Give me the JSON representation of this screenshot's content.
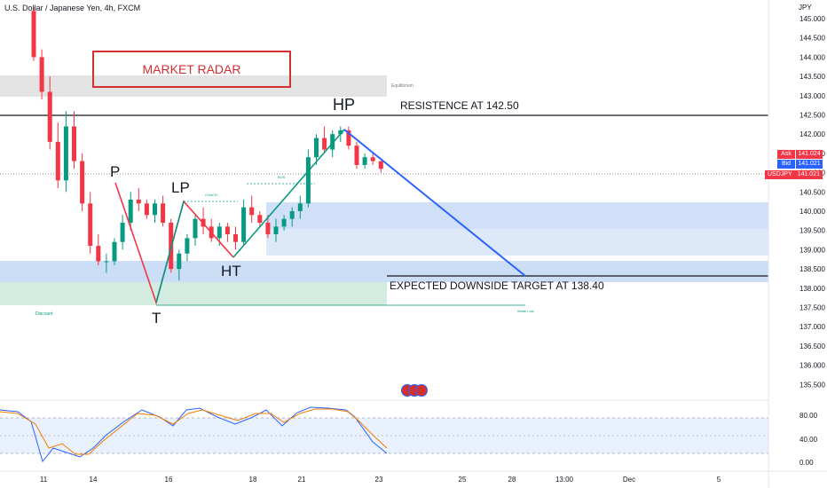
{
  "header": {
    "title": "U.S. Dollar / Japanese Yen, 4h, FXCM"
  },
  "currency": "JPY",
  "banner": {
    "text": "MARKET RADAR",
    "color": "#d32f2f"
  },
  "quotes": {
    "ask_label": "Ask",
    "ask_value": "141.024",
    "bid_label": "Bid",
    "bid_value": "141.021",
    "symbol_label": "USDJPY",
    "symbol_value": "141.021"
  },
  "annotations": {
    "p": "P",
    "t": "T",
    "lp": "LP",
    "ht": "HT",
    "hp": "HP",
    "resistance": "RESISTENCE AT 142.50",
    "target": "EXPECTED DOWNSIDE TARGET AT 138.40",
    "equilibrium": "Equilibrium",
    "discount": "Discount",
    "weak_low": "Weak Low",
    "choch": "CHoCH",
    "bos": "BOS"
  },
  "colors": {
    "up": "#089981",
    "down": "#f23645",
    "zone": "#bbd3f5",
    "discount": "#cfe9dc",
    "equilibrium": "#d9d9d9",
    "blue_line": "#2962ff",
    "red_line": "#f23645",
    "green_line": "#089981"
  },
  "chart_data": {
    "type": "candlestick",
    "y_axis": {
      "ticks": [
        "145.000",
        "144.500",
        "144.000",
        "143.500",
        "143.000",
        "142.500",
        "142.000",
        "141.500",
        "141.000",
        "140.500",
        "140.000",
        "139.500",
        "139.000",
        "138.500",
        "138.000",
        "137.500",
        "137.000",
        "136.500",
        "136.000",
        "135.500"
      ]
    },
    "x_axis": {
      "ticks": [
        "11",
        "14",
        "16",
        "18",
        "21",
        "23",
        "25",
        "28",
        "13:00",
        "Dec",
        "5"
      ]
    },
    "candles": [
      [
        145.2,
        145.3,
        143.9,
        144.0
      ],
      [
        144.0,
        144.2,
        142.9,
        143.1
      ],
      [
        143.1,
        143.5,
        141.6,
        141.8
      ],
      [
        141.8,
        142.3,
        140.6,
        140.8
      ],
      [
        140.8,
        142.6,
        140.5,
        142.2
      ],
      [
        142.2,
        142.6,
        141.1,
        141.3
      ],
      [
        141.3,
        141.5,
        140.0,
        140.2
      ],
      [
        140.2,
        140.5,
        138.9,
        139.1
      ],
      [
        139.1,
        139.4,
        138.6,
        138.7
      ],
      [
        138.7,
        138.9,
        138.4,
        138.7
      ],
      [
        138.7,
        139.3,
        138.6,
        139.2
      ],
      [
        139.2,
        139.9,
        139.0,
        139.7
      ],
      [
        139.7,
        140.5,
        139.5,
        140.3
      ],
      [
        140.3,
        140.6,
        140.0,
        140.2
      ],
      [
        140.2,
        140.3,
        139.8,
        139.9
      ],
      [
        139.9,
        140.3,
        139.7,
        140.2
      ],
      [
        140.2,
        140.4,
        139.6,
        139.7
      ],
      [
        139.7,
        139.8,
        138.4,
        138.5
      ],
      [
        138.5,
        139.0,
        138.2,
        138.9
      ],
      [
        138.9,
        139.4,
        138.7,
        139.3
      ],
      [
        139.3,
        139.9,
        139.1,
        139.8
      ],
      [
        139.8,
        140.1,
        139.4,
        139.6
      ],
      [
        139.6,
        139.8,
        139.2,
        139.3
      ],
      [
        139.3,
        139.7,
        139.1,
        139.6
      ],
      [
        139.6,
        139.7,
        139.2,
        139.4
      ],
      [
        139.4,
        139.6,
        139.0,
        139.2
      ],
      [
        139.2,
        140.3,
        139.1,
        140.1
      ],
      [
        140.1,
        140.4,
        139.7,
        139.9
      ],
      [
        139.9,
        140.0,
        139.6,
        139.7
      ],
      [
        139.7,
        139.9,
        139.3,
        139.4
      ],
      [
        139.4,
        139.8,
        139.2,
        139.6
      ],
      [
        139.6,
        139.9,
        139.5,
        139.8
      ],
      [
        139.8,
        140.1,
        139.6,
        140.0
      ],
      [
        140.0,
        140.4,
        139.8,
        140.2
      ],
      [
        140.2,
        141.6,
        140.1,
        141.4
      ],
      [
        141.4,
        142.0,
        141.2,
        141.9
      ],
      [
        141.9,
        142.2,
        141.5,
        141.6
      ],
      [
        141.6,
        142.1,
        141.4,
        142.0
      ],
      [
        142.0,
        142.2,
        141.8,
        142.1
      ],
      [
        142.1,
        142.2,
        141.6,
        141.7
      ],
      [
        141.7,
        141.8,
        141.1,
        141.2
      ],
      [
        141.2,
        141.5,
        141.1,
        141.4
      ],
      [
        141.4,
        141.5,
        141.2,
        141.3
      ],
      [
        141.3,
        141.3,
        141.0,
        141.1
      ]
    ],
    "stochastic": {
      "levels": [
        "80.00",
        "40.00",
        "0.00"
      ]
    }
  }
}
